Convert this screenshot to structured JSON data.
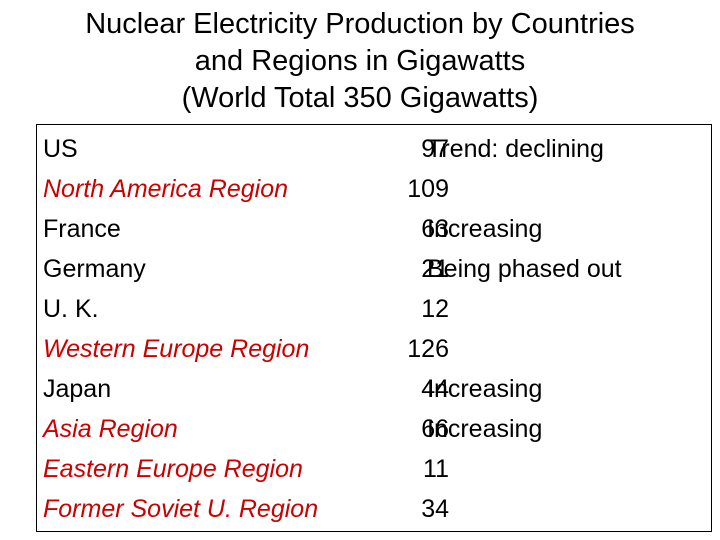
{
  "slide": {
    "title_lines": [
      "Nuclear Electricity Production by Countries",
      "and Regions in Gigawatts",
      "(World Total 350 Gigawatts)"
    ]
  },
  "table": {
    "rows": [
      {
        "name": "US",
        "value": "97",
        "trend": "Trend: declining",
        "is_region": false
      },
      {
        "name": "North America Region",
        "value": "109",
        "trend": "",
        "is_region": true
      },
      {
        "name": "France",
        "value": "63",
        "trend": "Increasing",
        "is_region": false
      },
      {
        "name": "Germany",
        "value": "21",
        "trend": "Being phased out",
        "is_region": false
      },
      {
        "name": "U. K.",
        "value": "12",
        "trend": "",
        "is_region": false
      },
      {
        "name": "Western Europe Region",
        "value": "126",
        "trend": "",
        "is_region": true
      },
      {
        "name": "Japan",
        "value": "44",
        "trend": "Increasing",
        "is_region": false
      },
      {
        "name": "Asia Region",
        "value": "66",
        "trend": "Increasing",
        "is_region": true
      },
      {
        "name": "Eastern Europe Region",
        "value": "11",
        "trend": "",
        "is_region": true
      },
      {
        "name": "Former Soviet U. Region",
        "value": "34",
        "trend": "",
        "is_region": true
      }
    ]
  },
  "colors": {
    "region_text": "#cc0000",
    "text": "#000000",
    "background": "#ffffff"
  }
}
